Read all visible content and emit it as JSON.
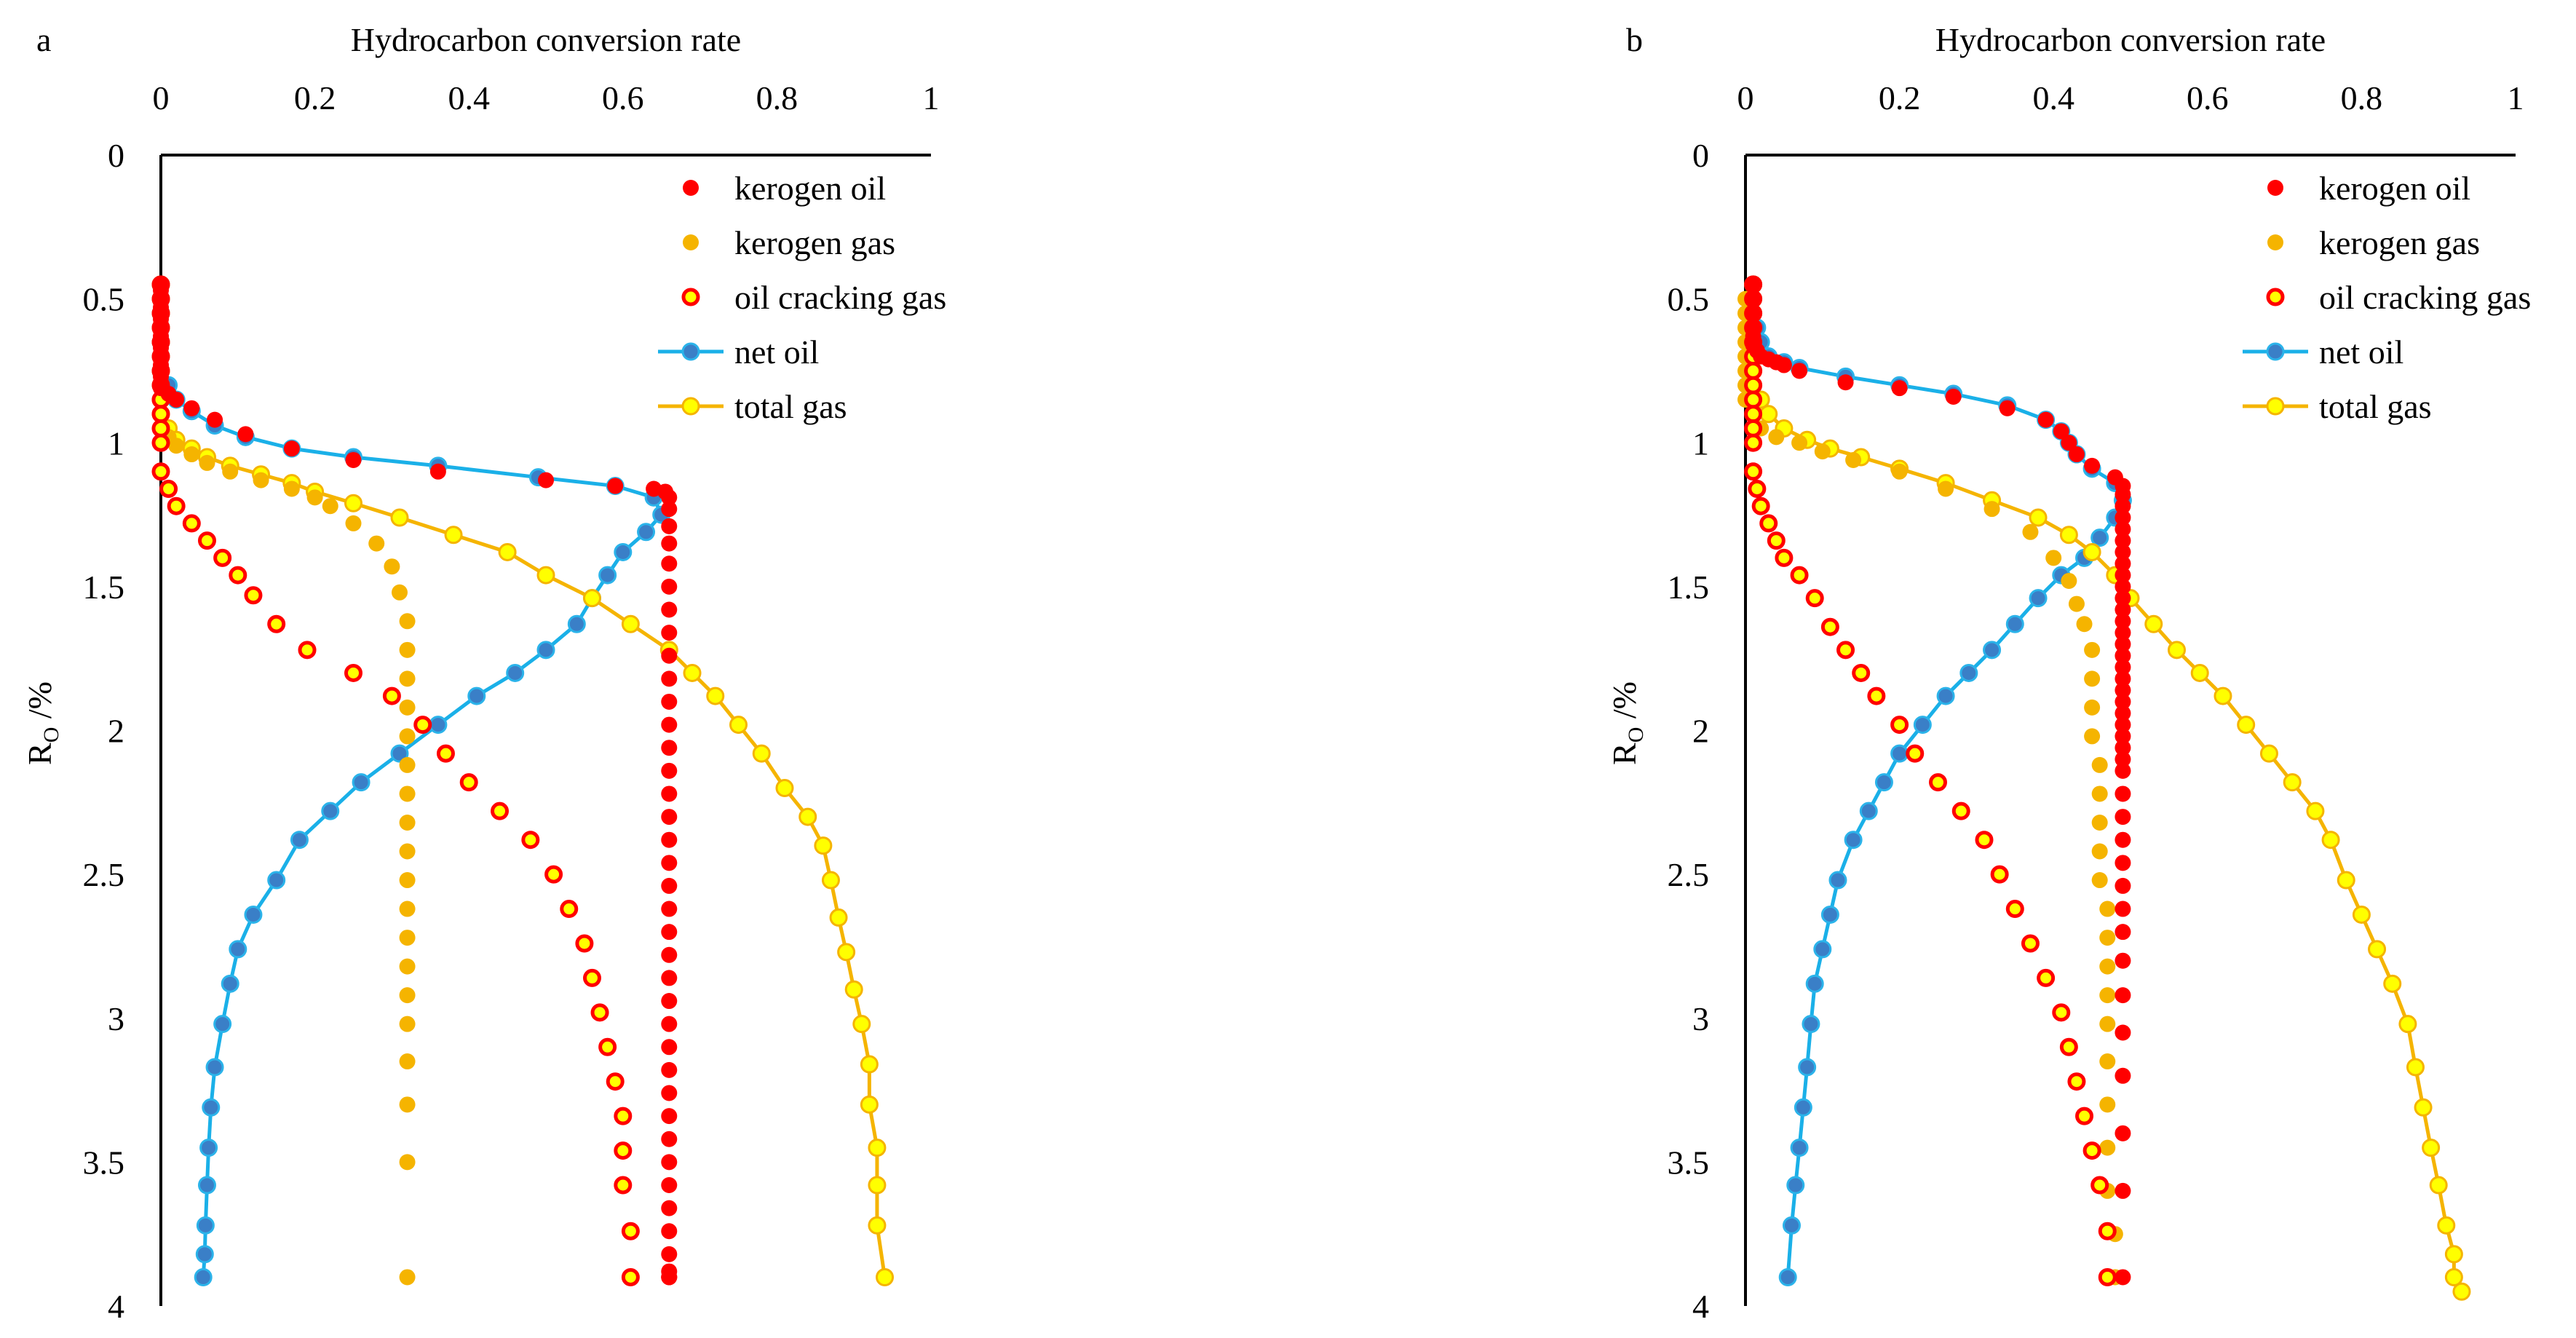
{
  "chart_data": [
    {
      "panel_label": "a",
      "type": "scatter",
      "title": "Hydrocarbon conversion rate",
      "xlabel": "Hydrocarbon conversion rate",
      "ylabel": "R",
      "ylabel_sub": "O",
      "ylabel_unit": " /%",
      "xlim": [
        0,
        1
      ],
      "ylim": [
        0,
        4
      ],
      "y_inverted": true,
      "x_axis_position": "top",
      "grid": false,
      "legend_position": "top-right",
      "x_ticks": [
        "0",
        "0.2",
        "0.4",
        "0.6",
        "0.8",
        "1"
      ],
      "y_ticks": [
        "0",
        "0.5",
        "1",
        "1.5",
        "2",
        "2.5",
        "3",
        "3.5",
        "4"
      ],
      "series": [
        {
          "name": "kerogen oil",
          "style": "red-dot",
          "x": [
            0,
            0,
            0,
            0,
            0,
            0,
            0,
            0,
            0,
            0,
            0,
            0,
            0,
            0,
            0,
            0,
            0,
            0,
            0,
            0.01,
            0.02,
            0.04,
            0.07,
            0.11,
            0.17,
            0.25,
            0.36,
            0.5,
            0.59,
            0.64,
            0.655,
            0.66,
            0.66,
            0.66,
            0.66,
            0.66,
            0.66,
            0.66,
            0.66,
            0.66,
            0.66,
            0.66,
            0.66,
            0.66,
            0.66,
            0.66,
            0.66,
            0.66,
            0.66,
            0.66,
            0.66,
            0.66,
            0.66,
            0.66,
            0.66,
            0.66,
            0.66,
            0.66,
            0.66,
            0.66,
            0.66,
            0.66,
            0.66,
            0.66,
            0.66,
            0.66,
            0.66,
            0.66,
            0.66,
            0.66
          ],
          "y": [
            0.45,
            0.47,
            0.49,
            0.51,
            0.53,
            0.55,
            0.57,
            0.59,
            0.61,
            0.63,
            0.65,
            0.67,
            0.69,
            0.71,
            0.73,
            0.75,
            0.77,
            0.79,
            0.81,
            0.83,
            0.85,
            0.88,
            0.92,
            0.97,
            1.02,
            1.06,
            1.1,
            1.13,
            1.15,
            1.16,
            1.17,
            1.19,
            1.23,
            1.29,
            1.35,
            1.42,
            1.5,
            1.58,
            1.66,
            1.74,
            1.82,
            1.9,
            1.98,
            2.06,
            2.14,
            2.22,
            2.3,
            2.38,
            2.46,
            2.54,
            2.62,
            2.7,
            2.78,
            2.86,
            2.94,
            3.02,
            3.1,
            3.18,
            3.26,
            3.34,
            3.42,
            3.5,
            3.58,
            3.66,
            3.74,
            3.82,
            3.88,
            3.9,
            3.9,
            3.9
          ]
        },
        {
          "name": "kerogen gas",
          "style": "orange-dot",
          "x": [
            0,
            0,
            0,
            0,
            0,
            0,
            0,
            0,
            0,
            0,
            0.01,
            0.02,
            0.04,
            0.06,
            0.09,
            0.13,
            0.17,
            0.2,
            0.22,
            0.25,
            0.28,
            0.3,
            0.31,
            0.32,
            0.32,
            0.32,
            0.32,
            0.32,
            0.32,
            0.32,
            0.32,
            0.32,
            0.32,
            0.32,
            0.32,
            0.32,
            0.32,
            0.32,
            0.32,
            0.32,
            0.32,
            0.32
          ],
          "y": [
            0.5,
            0.55,
            0.6,
            0.65,
            0.7,
            0.75,
            0.8,
            0.85,
            0.9,
            0.95,
            0.98,
            1.01,
            1.04,
            1.07,
            1.1,
            1.13,
            1.16,
            1.19,
            1.22,
            1.28,
            1.35,
            1.43,
            1.52,
            1.62,
            1.72,
            1.82,
            1.92,
            2.02,
            2.12,
            2.22,
            2.32,
            2.42,
            2.52,
            2.62,
            2.72,
            2.82,
            2.92,
            3.02,
            3.15,
            3.3,
            3.5,
            3.9
          ]
        },
        {
          "name": "oil cracking gas",
          "style": "red-ring",
          "x": [
            0,
            0,
            0,
            0,
            0,
            0,
            0,
            0,
            0,
            0,
            0,
            0,
            0,
            0.01,
            0.02,
            0.04,
            0.06,
            0.08,
            0.1,
            0.12,
            0.15,
            0.19,
            0.25,
            0.3,
            0.34,
            0.37,
            0.4,
            0.44,
            0.48,
            0.51,
            0.53,
            0.55,
            0.56,
            0.57,
            0.58,
            0.59,
            0.6,
            0.6,
            0.6,
            0.61,
            0.61
          ],
          "y": [
            0.45,
            0.5,
            0.55,
            0.6,
            0.65,
            0.7,
            0.75,
            0.8,
            0.85,
            0.9,
            0.95,
            1.0,
            1.1,
            1.16,
            1.22,
            1.28,
            1.34,
            1.4,
            1.46,
            1.53,
            1.63,
            1.72,
            1.8,
            1.88,
            1.98,
            2.08,
            2.18,
            2.28,
            2.38,
            2.5,
            2.62,
            2.74,
            2.86,
            2.98,
            3.1,
            3.22,
            3.34,
            3.46,
            3.58,
            3.74,
            3.9
          ]
        },
        {
          "name": "net oil",
          "style": "blue-line-marker",
          "x": [
            0,
            0,
            0,
            0,
            0,
            0,
            0,
            0.01,
            0.02,
            0.04,
            0.07,
            0.11,
            0.17,
            0.25,
            0.36,
            0.49,
            0.59,
            0.64,
            0.65,
            0.63,
            0.6,
            0.58,
            0.56,
            0.54,
            0.5,
            0.46,
            0.41,
            0.36,
            0.31,
            0.26,
            0.22,
            0.18,
            0.15,
            0.12,
            0.1,
            0.09,
            0.08,
            0.07,
            0.065,
            0.062,
            0.06,
            0.058,
            0.057,
            0.055
          ],
          "y": [
            0.45,
            0.5,
            0.55,
            0.6,
            0.65,
            0.7,
            0.75,
            0.8,
            0.85,
            0.89,
            0.94,
            0.98,
            1.02,
            1.05,
            1.08,
            1.12,
            1.15,
            1.19,
            1.25,
            1.31,
            1.38,
            1.46,
            1.54,
            1.63,
            1.72,
            1.8,
            1.88,
            1.98,
            2.08,
            2.18,
            2.28,
            2.38,
            2.52,
            2.64,
            2.76,
            2.88,
            3.02,
            3.17,
            3.31,
            3.45,
            3.58,
            3.72,
            3.82,
            3.9
          ]
        },
        {
          "name": "total gas",
          "style": "yellow-line-marker",
          "x": [
            0,
            0,
            0,
            0,
            0,
            0,
            0,
            0,
            0,
            0,
            0.01,
            0.02,
            0.04,
            0.06,
            0.09,
            0.13,
            0.17,
            0.2,
            0.25,
            0.31,
            0.38,
            0.45,
            0.5,
            0.56,
            0.61,
            0.66,
            0.69,
            0.72,
            0.75,
            0.78,
            0.81,
            0.84,
            0.86,
            0.87,
            0.88,
            0.89,
            0.9,
            0.91,
            0.92,
            0.92,
            0.93,
            0.93,
            0.93,
            0.94
          ],
          "y": [
            0.45,
            0.5,
            0.55,
            0.6,
            0.65,
            0.7,
            0.75,
            0.8,
            0.85,
            0.9,
            0.95,
            0.99,
            1.02,
            1.05,
            1.08,
            1.11,
            1.14,
            1.17,
            1.21,
            1.26,
            1.32,
            1.38,
            1.46,
            1.54,
            1.63,
            1.72,
            1.8,
            1.88,
            1.98,
            2.08,
            2.2,
            2.3,
            2.4,
            2.52,
            2.65,
            2.77,
            2.9,
            3.02,
            3.16,
            3.3,
            3.45,
            3.58,
            3.72,
            3.9
          ]
        }
      ]
    },
    {
      "panel_label": "b",
      "type": "scatter",
      "title": "Hydrocarbon conversion rate",
      "xlabel": "Hydrocarbon conversion rate",
      "ylabel": "R",
      "ylabel_sub": "O",
      "ylabel_unit": " /%",
      "xlim": [
        0,
        1
      ],
      "ylim": [
        0,
        4
      ],
      "y_inverted": true,
      "x_axis_position": "top",
      "grid": false,
      "legend_position": "top-right",
      "x_ticks": [
        "0",
        "0.2",
        "0.4",
        "0.6",
        "0.8",
        "1"
      ],
      "y_ticks": [
        "0",
        "0.5",
        "1",
        "1.5",
        "2",
        "2.5",
        "3",
        "3.5",
        "4"
      ],
      "series": [
        {
          "name": "kerogen oil",
          "style": "red-dot",
          "x": [
            0.01,
            0.01,
            0.01,
            0.01,
            0.01,
            0.01,
            0.015,
            0.02,
            0.03,
            0.04,
            0.05,
            0.07,
            0.13,
            0.2,
            0.27,
            0.34,
            0.39,
            0.41,
            0.42,
            0.43,
            0.45,
            0.48,
            0.49,
            0.49,
            0.49,
            0.49,
            0.49,
            0.49,
            0.49,
            0.49,
            0.49,
            0.49,
            0.49,
            0.49,
            0.49,
            0.49,
            0.49,
            0.49,
            0.49,
            0.49,
            0.49,
            0.49,
            0.49,
            0.49,
            0.49,
            0.49,
            0.49,
            0.49,
            0.49,
            0.49,
            0.49,
            0.49,
            0.49,
            0.49,
            0.49,
            0.49,
            0.49,
            0.49,
            0.49,
            0.49,
            0.49,
            0.49
          ],
          "y": [
            0.45,
            0.5,
            0.55,
            0.6,
            0.63,
            0.66,
            0.68,
            0.7,
            0.71,
            0.72,
            0.73,
            0.75,
            0.79,
            0.81,
            0.84,
            0.88,
            0.92,
            0.96,
            1.0,
            1.04,
            1.08,
            1.12,
            1.15,
            1.18,
            1.22,
            1.26,
            1.3,
            1.34,
            1.38,
            1.42,
            1.46,
            1.5,
            1.54,
            1.58,
            1.62,
            1.66,
            1.7,
            1.74,
            1.78,
            1.82,
            1.86,
            1.9,
            1.94,
            1.98,
            2.02,
            2.06,
            2.1,
            2.14,
            2.22,
            2.3,
            2.38,
            2.46,
            2.54,
            2.62,
            2.7,
            2.8,
            2.92,
            3.05,
            3.2,
            3.4,
            3.6,
            3.9
          ]
        },
        {
          "name": "kerogen gas",
          "style": "orange-dot",
          "x": [
            0,
            0,
            0,
            0,
            0,
            0,
            0,
            0,
            0.01,
            0.02,
            0.04,
            0.07,
            0.1,
            0.14,
            0.2,
            0.26,
            0.32,
            0.37,
            0.4,
            0.42,
            0.43,
            0.44,
            0.45,
            0.45,
            0.45,
            0.45,
            0.46,
            0.46,
            0.46,
            0.46,
            0.46,
            0.47,
            0.47,
            0.47,
            0.47,
            0.47,
            0.47,
            0.47,
            0.47,
            0.47,
            0.48,
            0.48
          ],
          "y": [
            0.5,
            0.55,
            0.6,
            0.65,
            0.7,
            0.75,
            0.8,
            0.85,
            0.9,
            0.95,
            0.98,
            1.0,
            1.03,
            1.06,
            1.1,
            1.16,
            1.23,
            1.31,
            1.4,
            1.48,
            1.56,
            1.63,
            1.72,
            1.82,
            1.92,
            2.02,
            2.12,
            2.22,
            2.32,
            2.42,
            2.52,
            2.62,
            2.72,
            2.82,
            2.92,
            3.02,
            3.15,
            3.3,
            3.45,
            3.6,
            3.75,
            3.9
          ]
        },
        {
          "name": "oil cracking gas",
          "style": "red-ring",
          "x": [
            0.01,
            0.01,
            0.01,
            0.01,
            0.01,
            0.01,
            0.01,
            0.01,
            0.01,
            0.01,
            0.01,
            0.01,
            0.01,
            0.015,
            0.02,
            0.03,
            0.04,
            0.05,
            0.07,
            0.09,
            0.11,
            0.13,
            0.15,
            0.17,
            0.2,
            0.22,
            0.25,
            0.28,
            0.31,
            0.33,
            0.35,
            0.37,
            0.39,
            0.41,
            0.42,
            0.43,
            0.44,
            0.45,
            0.46,
            0.47,
            0.47
          ],
          "y": [
            0.45,
            0.5,
            0.55,
            0.6,
            0.65,
            0.7,
            0.75,
            0.8,
            0.85,
            0.9,
            0.95,
            1.0,
            1.1,
            1.16,
            1.22,
            1.28,
            1.34,
            1.4,
            1.46,
            1.54,
            1.64,
            1.72,
            1.8,
            1.88,
            1.98,
            2.08,
            2.18,
            2.28,
            2.38,
            2.5,
            2.62,
            2.74,
            2.86,
            2.98,
            3.1,
            3.22,
            3.34,
            3.46,
            3.58,
            3.74,
            3.9
          ]
        },
        {
          "name": "net oil",
          "style": "blue-line-marker",
          "x": [
            0.01,
            0.01,
            0.01,
            0.015,
            0.02,
            0.03,
            0.05,
            0.07,
            0.13,
            0.2,
            0.27,
            0.34,
            0.39,
            0.41,
            0.42,
            0.43,
            0.45,
            0.48,
            0.49,
            0.48,
            0.46,
            0.44,
            0.41,
            0.38,
            0.35,
            0.32,
            0.29,
            0.26,
            0.23,
            0.2,
            0.18,
            0.16,
            0.14,
            0.12,
            0.11,
            0.1,
            0.09,
            0.085,
            0.08,
            0.075,
            0.07,
            0.065,
            0.06,
            0.055
          ],
          "y": [
            0.45,
            0.5,
            0.55,
            0.6,
            0.65,
            0.7,
            0.72,
            0.74,
            0.77,
            0.8,
            0.83,
            0.87,
            0.92,
            0.96,
            1.0,
            1.04,
            1.09,
            1.14,
            1.2,
            1.26,
            1.33,
            1.4,
            1.46,
            1.54,
            1.63,
            1.72,
            1.8,
            1.88,
            1.98,
            2.08,
            2.18,
            2.28,
            2.38,
            2.52,
            2.64,
            2.76,
            2.88,
            3.02,
            3.17,
            3.31,
            3.45,
            3.58,
            3.72,
            3.9
          ]
        },
        {
          "name": "total gas",
          "style": "yellow-line-marker",
          "x": [
            0.01,
            0.01,
            0.01,
            0.01,
            0.01,
            0.01,
            0.01,
            0.01,
            0.02,
            0.03,
            0.05,
            0.08,
            0.11,
            0.15,
            0.2,
            0.26,
            0.32,
            0.38,
            0.42,
            0.45,
            0.48,
            0.5,
            0.53,
            0.56,
            0.59,
            0.62,
            0.65,
            0.68,
            0.71,
            0.74,
            0.76,
            0.78,
            0.8,
            0.82,
            0.84,
            0.86,
            0.87,
            0.88,
            0.89,
            0.9,
            0.91,
            0.92,
            0.92,
            0.93
          ],
          "y": [
            0.45,
            0.5,
            0.55,
            0.6,
            0.65,
            0.7,
            0.75,
            0.8,
            0.85,
            0.9,
            0.95,
            0.99,
            1.02,
            1.05,
            1.09,
            1.14,
            1.2,
            1.26,
            1.32,
            1.38,
            1.46,
            1.54,
            1.63,
            1.72,
            1.8,
            1.88,
            1.98,
            2.08,
            2.18,
            2.28,
            2.38,
            2.52,
            2.64,
            2.76,
            2.88,
            3.02,
            3.17,
            3.31,
            3.45,
            3.58,
            3.72,
            3.82,
            3.9,
            3.95
          ]
        }
      ]
    }
  ]
}
